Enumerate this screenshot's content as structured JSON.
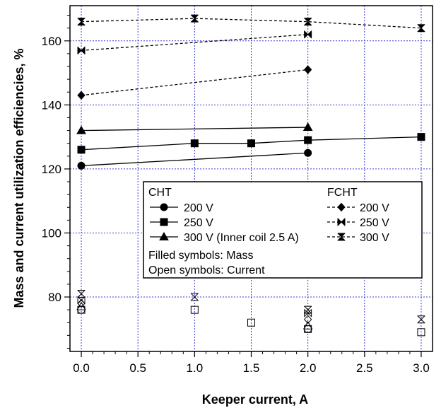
{
  "chart_data": {
    "type": "scatter",
    "xlabel": "Keeper current, A",
    "ylabel": "Mass and current utilization efficiencies, %",
    "xlim": [
      -0.1,
      3.1
    ],
    "ylim": [
      63,
      171
    ],
    "xticks": [
      0.0,
      0.5,
      1.0,
      1.5,
      2.0,
      2.5,
      3.0
    ],
    "xtick_labels": [
      "0.0",
      "0.5",
      "1.0",
      "1.5",
      "2.0",
      "2.5",
      "3.0"
    ],
    "yticks": [
      80,
      100,
      120,
      140,
      160
    ],
    "ytick_labels": [
      "80",
      "100",
      "120",
      "140",
      "160"
    ],
    "grid": true,
    "legend_position": "center-right",
    "legend": {
      "group_left": "CHT",
      "group_right": "FCHT",
      "note_filled": "Filled symbols:  Mass",
      "note_open": "Open symbols:  Current"
    },
    "series": [
      {
        "name": "200 V",
        "group": "CHT",
        "kind": "mass",
        "marker": "circle",
        "line": "solid",
        "x": [
          0,
          2
        ],
        "y": [
          121,
          125
        ]
      },
      {
        "name": "250 V",
        "group": "CHT",
        "kind": "mass",
        "marker": "square",
        "line": "solid",
        "x": [
          0,
          1,
          1.5,
          2,
          3
        ],
        "y": [
          126,
          128,
          128,
          129,
          130
        ]
      },
      {
        "name": "300 V (Inner coil 2.5 A)",
        "group": "CHT",
        "kind": "mass",
        "marker": "triangle",
        "line": "solid",
        "x": [
          0,
          2
        ],
        "y": [
          132,
          133
        ]
      },
      {
        "name": "200 V",
        "group": "FCHT",
        "kind": "mass",
        "marker": "diamond",
        "line": "dashed",
        "x": [
          0,
          2
        ],
        "y": [
          143,
          151
        ]
      },
      {
        "name": "250 V",
        "group": "FCHT",
        "kind": "mass",
        "marker": "bowtie",
        "line": "dashed",
        "x": [
          0,
          2
        ],
        "y": [
          157,
          162
        ]
      },
      {
        "name": "300 V",
        "group": "FCHT",
        "kind": "mass",
        "marker": "hourglass",
        "line": "dashed",
        "x": [
          0,
          1,
          2,
          3
        ],
        "y": [
          166,
          167,
          166,
          164
        ]
      },
      {
        "group": "CHT",
        "voltage": "200 V",
        "kind": "current",
        "marker": "circle",
        "x": [
          0,
          2
        ],
        "y": [
          76,
          70
        ]
      },
      {
        "group": "CHT",
        "voltage": "250 V",
        "kind": "current",
        "marker": "square",
        "x": [
          0,
          1,
          1.5,
          2,
          3
        ],
        "y": [
          76,
          76,
          72,
          70,
          69
        ]
      },
      {
        "group": "CHT",
        "voltage": "300 V",
        "kind": "current",
        "marker": "triangle",
        "x": [
          0,
          2
        ],
        "y": [
          77,
          71
        ]
      },
      {
        "group": "FCHT",
        "voltage": "200 V",
        "kind": "current",
        "marker": "diamond",
        "x": [
          0,
          2
        ],
        "y": [
          78,
          73
        ]
      },
      {
        "group": "FCHT",
        "voltage": "250 V",
        "kind": "current",
        "marker": "bowtie",
        "x": [
          0,
          2
        ],
        "y": [
          79,
          75
        ]
      },
      {
        "group": "FCHT",
        "voltage": "300 V",
        "kind": "current",
        "marker": "hourglass",
        "x": [
          0,
          1,
          2,
          3
        ],
        "y": [
          81,
          80,
          76,
          73
        ]
      }
    ]
  }
}
